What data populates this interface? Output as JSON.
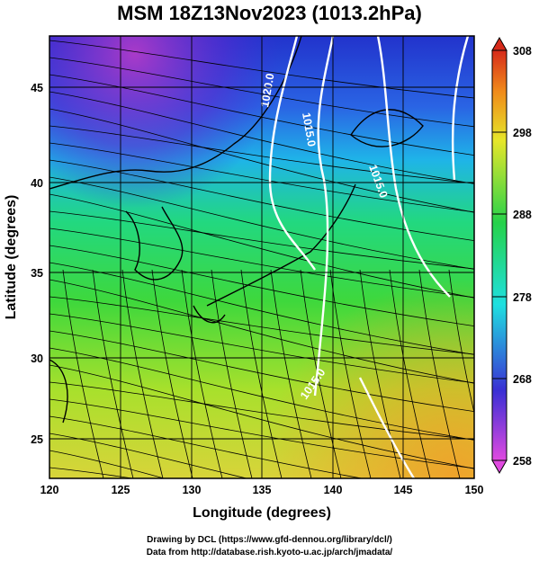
{
  "title": "MSM 18Z13Nov2023 (1013.2hPa)",
  "x_axis": {
    "label": "Longitude (degrees)",
    "ticks": [
      "120",
      "125",
      "130",
      "135",
      "140",
      "145",
      "150"
    ],
    "range": [
      120,
      150
    ]
  },
  "y_axis": {
    "label": "Latitude  (degrees)",
    "ticks": [
      "25",
      "30",
      "35",
      "40",
      "45"
    ],
    "range": [
      22.5,
      47.5
    ]
  },
  "colorbar": {
    "ticks": [
      "258",
      "268",
      "278",
      "288",
      "298",
      "308"
    ],
    "range": [
      258,
      308
    ],
    "stops": [
      "#e04ae0",
      "#3a2fd4",
      "#1fe0e0",
      "#26d24a",
      "#e6e62a",
      "#f08a1a",
      "#d62a1a"
    ]
  },
  "contours": [
    {
      "label": "1020.0"
    },
    {
      "label": "1015.0"
    },
    {
      "label": "1015.0"
    },
    {
      "label": "1015.0"
    }
  ],
  "credits": {
    "drawing": "Drawing by DCL (https://www.gfd-dennou.org/library/dcl/)",
    "data": "Data from http://database.rish.kyoto-u.ac.jp/arch/jmadata/"
  }
}
